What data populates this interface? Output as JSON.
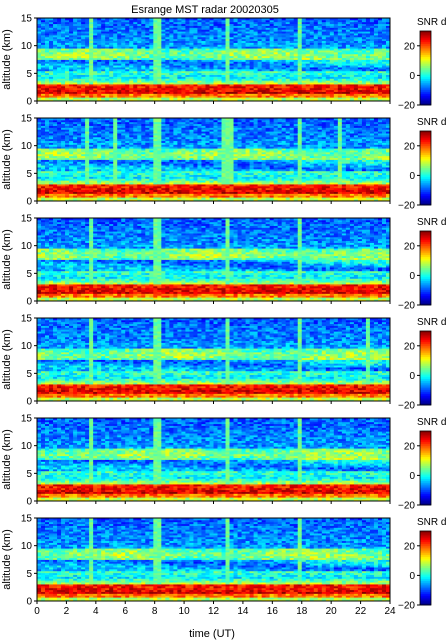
{
  "chart_data": {
    "type": "heatmap",
    "title": "Esrange MST radar 20020305",
    "xlabel": "time (UT)",
    "ylabel": "altitude (km)",
    "xlim": [
      0,
      24
    ],
    "ylim": [
      0,
      15
    ],
    "x_ticks": [
      "0",
      "2",
      "4",
      "6",
      "8",
      "10",
      "12",
      "14",
      "16",
      "18",
      "20",
      "22",
      "24"
    ],
    "y_ticks": [
      "0",
      "5",
      "10",
      "15"
    ],
    "colorbar": {
      "label": "SNR dB",
      "range": [
        -20,
        30
      ],
      "ticks": [
        "20",
        "0",
        "−20"
      ],
      "colormap": "jet"
    },
    "panels": [
      {
        "vertical_streaks_hours": [
          3.7,
          8.1,
          8.3,
          13.0,
          17.8
        ],
        "bands_km": {
          "strong_top": 3,
          "enhanced_mid": 8,
          "quiet_above": 10
        }
      },
      {
        "vertical_streaks_hours": [
          3.4,
          5.3,
          8.1,
          8.3,
          12.8,
          13.1,
          17.8,
          20.5
        ],
        "bands_km": {
          "strong_top": 3,
          "enhanced_mid": 8,
          "quiet_above": 10
        }
      },
      {
        "vertical_streaks_hours": [
          3.7,
          8.1,
          8.3,
          13.0,
          17.8
        ],
        "bands_km": {
          "strong_top": 3,
          "enhanced_mid": 8,
          "quiet_above": 10
        }
      },
      {
        "vertical_streaks_hours": [
          3.7,
          8.2,
          13.0,
          17.8,
          22.5
        ],
        "bands_km": {
          "strong_top": 3,
          "enhanced_mid": 8,
          "quiet_above": 10
        }
      },
      {
        "vertical_streaks_hours": [
          3.7,
          8.1,
          8.3,
          13.0,
          17.8
        ],
        "bands_km": {
          "strong_top": 3,
          "enhanced_mid": 8,
          "quiet_above": 10
        }
      },
      {
        "vertical_streaks_hours": [
          3.7,
          8.1,
          8.3,
          13.0,
          17.8
        ],
        "bands_km": {
          "strong_top": 3,
          "enhanced_mid": 8,
          "quiet_above": 10
        }
      }
    ]
  }
}
